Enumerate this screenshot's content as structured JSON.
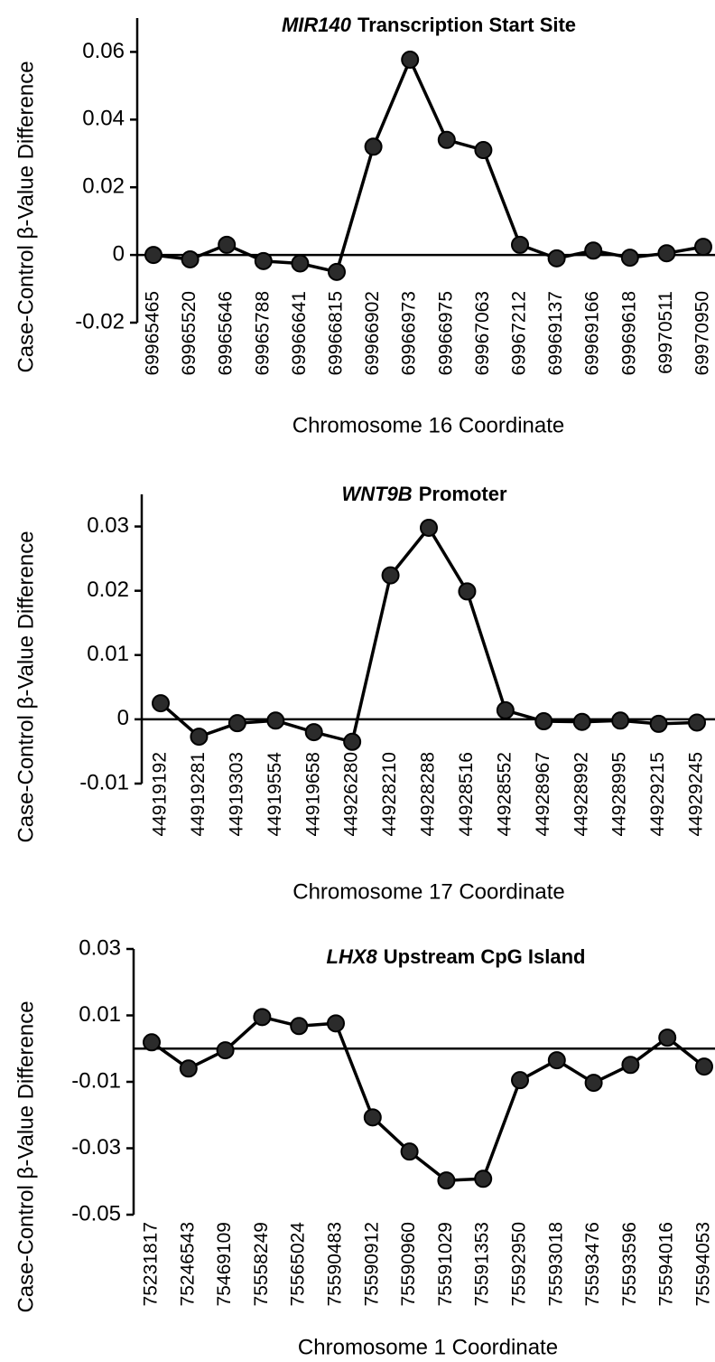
{
  "chart_data": [
    {
      "type": "line",
      "title": [
        "MIR140",
        "Transcription Start Site"
      ],
      "x_label": "Chromosome 16 Coordinate",
      "y_label": "Case-Control β-Value Difference",
      "categories": [
        "69965465",
        "69965520",
        "69965646",
        "69965788",
        "69966641",
        "69966815",
        "69966902",
        "69966973",
        "69966975",
        "69967063",
        "69967212",
        "69969137",
        "69969166",
        "69969618",
        "69970511",
        "69970950"
      ],
      "values": [
        0,
        -0.0013,
        0.003,
        -0.0018,
        -0.0025,
        -0.005,
        0.032,
        0.0577,
        0.034,
        0.031,
        0.003,
        -0.001,
        0.0013,
        -0.0008,
        0.0005,
        0.0024
      ],
      "color": "#000000",
      "marker_color": "#2b2b2b",
      "ylim": [
        -0.02,
        0.07
      ],
      "yticks": [
        -0.02,
        0,
        0.02,
        0.04,
        0.06
      ]
    },
    {
      "type": "line",
      "title": [
        "WNT9B",
        "Promoter"
      ],
      "x_label": "Chromosome 17 Coordinate",
      "y_label": "Case-Control β-Value Difference",
      "categories": [
        "44919192",
        "44919281",
        "44919303",
        "44919554",
        "44919658",
        "44926280",
        "44928210",
        "44928288",
        "44928516",
        "44928552",
        "44928967",
        "44928992",
        "44928995",
        "44929215",
        "44929245"
      ],
      "values": [
        0.0025,
        -0.0027,
        -0.0006,
        -0.0002,
        -0.002,
        -0.0035,
        0.0224,
        0.0298,
        0.0199,
        0.0014,
        -0.0003,
        -0.0004,
        -0.0002,
        -0.0007,
        -0.0005
      ],
      "color": "#000000",
      "marker_color": "#2b2b2b",
      "ylim": [
        -0.01,
        0.035
      ],
      "yticks": [
        -0.01,
        0,
        0.01,
        0.02,
        0.03
      ]
    },
    {
      "type": "line",
      "title": [
        "LHX8",
        "Upstream CpG Island"
      ],
      "x_label": "Chromosome 1 Coordinate",
      "y_label": "Case-Control β-Value Difference",
      "categories": [
        "75231817",
        "75246543",
        "75469109",
        "75558249",
        "75565024",
        "75590483",
        "75590912",
        "75590960",
        "75591029",
        "75591353",
        "75592950",
        "75593018",
        "75593476",
        "75593596",
        "75594016",
        "75594053"
      ],
      "values": [
        0.0019,
        -0.006,
        -0.0005,
        0.0095,
        0.0068,
        0.0076,
        -0.0207,
        -0.031,
        -0.0397,
        -0.0392,
        -0.0095,
        -0.0035,
        -0.0103,
        -0.0049,
        0.0033,
        -0.0054
      ],
      "color": "#000000",
      "marker_color": "#2b2b2b",
      "ylim": [
        -0.05,
        0.03
      ],
      "yticks": [
        -0.05,
        -0.03,
        -0.01,
        0.01,
        0.03
      ]
    }
  ]
}
